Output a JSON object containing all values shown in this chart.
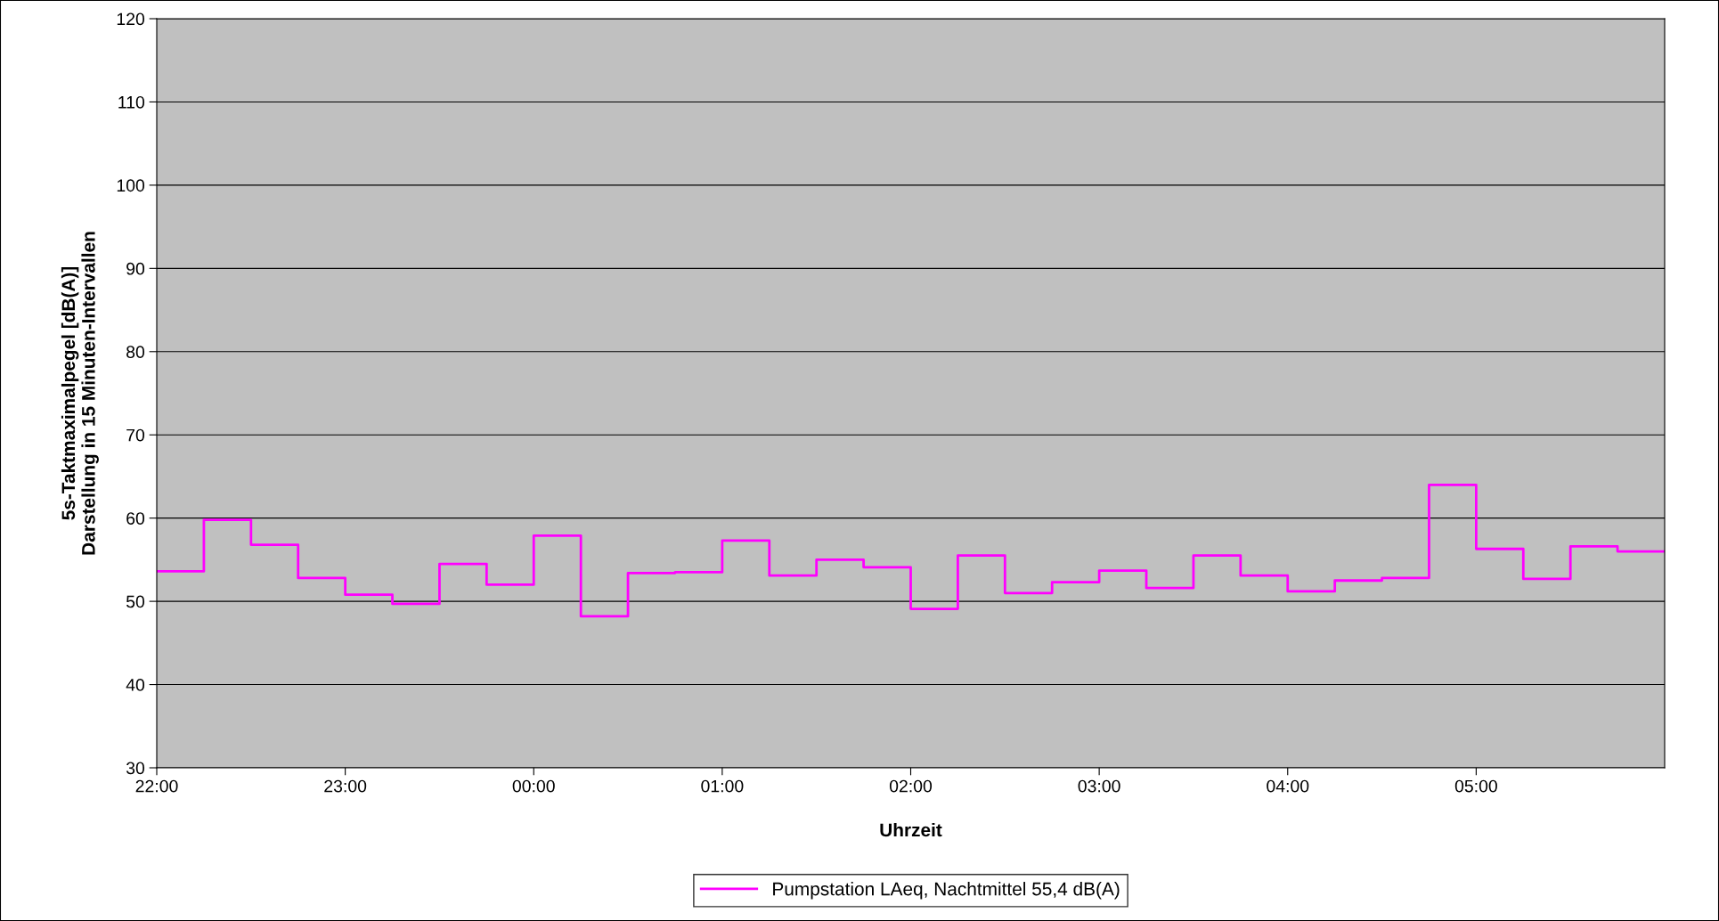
{
  "chart_data": {
    "type": "step",
    "xlabel": "Uhrzeit",
    "ylabel": "5s-Taktmaximalpegel [dB(A)]\nDarstellung in 15 Minuten-Intervallen",
    "x": [
      "2000-01-01T22:00",
      "2000-01-01T22:15",
      "2000-01-01T22:30",
      "2000-01-01T22:45",
      "2000-01-01T23:00",
      "2000-01-01T23:15",
      "2000-01-01T23:30",
      "2000-01-01T23:45",
      "2000-01-02T00:00",
      "2000-01-02T00:15",
      "2000-01-02T00:30",
      "2000-01-02T00:45",
      "2000-01-02T01:00",
      "2000-01-02T01:15",
      "2000-01-02T01:30",
      "2000-01-02T01:45",
      "2000-01-02T02:00",
      "2000-01-02T02:15",
      "2000-01-02T02:30",
      "2000-01-02T02:45",
      "2000-01-02T03:00",
      "2000-01-02T03:15",
      "2000-01-02T03:30",
      "2000-01-02T03:45",
      "2000-01-02T04:00",
      "2000-01-02T04:15",
      "2000-01-02T04:30",
      "2000-01-02T04:45",
      "2000-01-02T05:00",
      "2000-01-02T05:15",
      "2000-01-02T05:30",
      "2000-01-02T05:45",
      "2000-01-02T06:00"
    ],
    "series": [
      {
        "name": "Pumpstation LAeq, Nachtmittel 55,4 dB(A)",
        "color": "#ff00ff",
        "values": [
          53.6,
          59.8,
          56.8,
          52.8,
          50.8,
          49.7,
          54.5,
          52.0,
          57.9,
          48.2,
          53.4,
          53.5,
          57.3,
          53.1,
          55.0,
          54.1,
          49.1,
          55.5,
          51.0,
          52.3,
          53.7,
          51.6,
          55.5,
          53.1,
          51.2,
          52.5,
          52.8,
          64.0,
          56.3,
          52.7,
          56.6,
          56.0,
          56.0
        ]
      }
    ],
    "xlim": [
      "2000-01-01T22:00",
      "2000-01-02T06:00"
    ],
    "xticks": [
      {
        "value": "2000-01-01T22:00",
        "label": "22:00"
      },
      {
        "value": "2000-01-01T23:00",
        "label": "23:00"
      },
      {
        "value": "2000-01-02T00:00",
        "label": "00:00"
      },
      {
        "value": "2000-01-02T01:00",
        "label": "01:00"
      },
      {
        "value": "2000-01-02T02:00",
        "label": "02:00"
      },
      {
        "value": "2000-01-02T03:00",
        "label": "03:00"
      },
      {
        "value": "2000-01-02T04:00",
        "label": "04:00"
      },
      {
        "value": "2000-01-02T05:00",
        "label": "05:00"
      }
    ],
    "ylim": [
      30,
      120
    ],
    "yticks": [
      30,
      40,
      50,
      60,
      70,
      80,
      90,
      100,
      110,
      120
    ],
    "grid": "y",
    "legend": "bottom",
    "line_style": "solid",
    "marker": "none"
  }
}
